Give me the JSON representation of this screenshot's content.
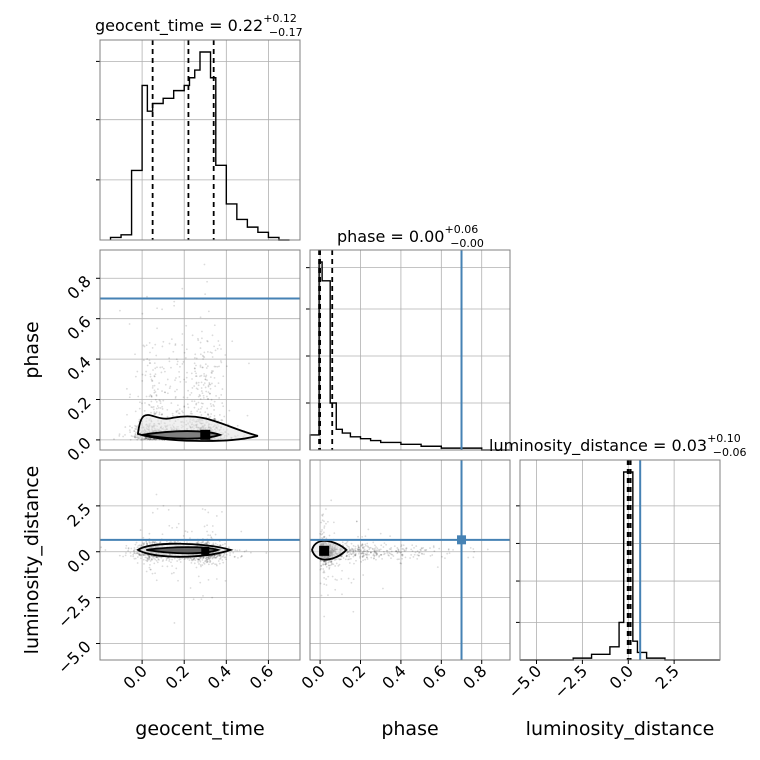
{
  "chart_data": {
    "type": "corner",
    "parameters": [
      "geocent_time",
      "phase",
      "luminosity_distance"
    ],
    "truth": {
      "geocent_time": null,
      "phase": 0.7,
      "luminosity_distance": 0.65
    },
    "truth_color": "#4682b4",
    "grid": true,
    "titles": [
      {
        "param": "geocent_time",
        "text": "geocent_time = 0.22",
        "plus": "+0.12",
        "minus": "−0.17"
      },
      {
        "param": "phase",
        "text": "phase = 0.00",
        "plus": "+0.06",
        "minus": "−0.00"
      },
      {
        "param": "luminosity_distance",
        "text": "luminosity_distance = 0.03",
        "plus": "+0.10",
        "minus": "−0.06"
      }
    ],
    "axis_labels": {
      "geocent_time": "geocent_time",
      "phase": "phase",
      "luminosity_distance": "luminosity_distance"
    },
    "ranges": {
      "geocent_time": [
        -0.2,
        0.75
      ],
      "phase": [
        -0.05,
        0.94
      ],
      "luminosity_distance": [
        -5.9,
        5.0
      ]
    },
    "ticks": {
      "geocent_time": [
        {
          "v": 0.0,
          "label": "0.0"
        },
        {
          "v": 0.2,
          "label": "0.2"
        },
        {
          "v": 0.4,
          "label": "0.4"
        },
        {
          "v": 0.6,
          "label": "0.6"
        }
      ],
      "phase": [
        {
          "v": 0.0,
          "label": "0.0"
        },
        {
          "v": 0.2,
          "label": "0.2"
        },
        {
          "v": 0.4,
          "label": "0.4"
        },
        {
          "v": 0.6,
          "label": "0.6"
        },
        {
          "v": 0.8,
          "label": "0.8"
        }
      ],
      "luminosity_distance": [
        {
          "v": -5.0,
          "label": "−5.0"
        },
        {
          "v": -2.5,
          "label": "−2.5"
        },
        {
          "v": 0.0,
          "label": "0.0"
        },
        {
          "v": 2.5,
          "label": "2.5"
        }
      ]
    },
    "quantiles": {
      "geocent_time": [
        0.05,
        0.22,
        0.34
      ],
      "phase": [
        -0.005,
        0.0,
        0.06
      ],
      "luminosity_distance": [
        -0.03,
        0.03,
        0.13
      ]
    },
    "hist_geocent_time": {
      "edges": [
        -0.15,
        -0.1,
        -0.05,
        0.0,
        0.025,
        0.05,
        0.1,
        0.15,
        0.2,
        0.225,
        0.25,
        0.275,
        0.3,
        0.325,
        0.35,
        0.4,
        0.45,
        0.5,
        0.55,
        0.6,
        0.65,
        0.7
      ],
      "counts": [
        1,
        2,
        27,
        60,
        50,
        53,
        55,
        58,
        60,
        63,
        66,
        73,
        73,
        63,
        29,
        14,
        8,
        5,
        3,
        1,
        0
      ]
    },
    "hist_phase": {
      "edges": [
        -0.05,
        -0.005,
        0.01,
        0.05,
        0.08,
        0.11,
        0.15,
        0.2,
        0.25,
        0.3,
        0.4,
        0.5,
        0.6,
        0.7,
        0.8,
        0.94
      ],
      "counts": [
        8,
        100,
        90,
        25,
        11,
        9,
        7,
        6,
        5,
        4,
        3,
        2,
        1,
        1,
        0
      ]
    },
    "hist_luminosity_distance": {
      "edges": [
        -5.9,
        -3.0,
        -2.0,
        -1.0,
        -0.5,
        -0.25,
        0.0,
        0.25,
        0.5,
        1.0,
        2.0,
        5.0
      ],
      "counts": [
        0,
        1,
        3,
        7,
        20,
        100,
        100,
        10,
        4,
        1,
        0
      ]
    }
  }
}
